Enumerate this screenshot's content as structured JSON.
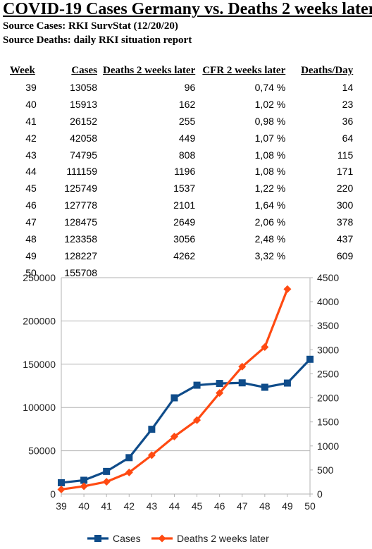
{
  "title": "COVID-19 Cases Germany vs. Deaths 2 weeks later",
  "source_cases": "Source Cases: RKI SurvStat (12/20/20)",
  "source_deaths": "Source Deaths: daily RKI situation report",
  "table": {
    "headers": [
      "Week",
      "Cases",
      "Deaths 2 weeks later",
      "CFR 2 weeks later",
      "Deaths/Day"
    ],
    "rows": [
      [
        "39",
        "13058",
        "96",
        "0,74 %",
        "14"
      ],
      [
        "40",
        "15913",
        "162",
        "1,02 %",
        "23"
      ],
      [
        "41",
        "26152",
        "255",
        "0,98 %",
        "36"
      ],
      [
        "42",
        "42058",
        "449",
        "1,07 %",
        "64"
      ],
      [
        "43",
        "74795",
        "808",
        "1,08 %",
        "115"
      ],
      [
        "44",
        "111159",
        "1196",
        "1,08 %",
        "171"
      ],
      [
        "45",
        "125749",
        "1537",
        "1,22 %",
        "220"
      ],
      [
        "46",
        "127778",
        "2101",
        "1,64 %",
        "300"
      ],
      [
        "47",
        "128475",
        "2649",
        "2,06 %",
        "378"
      ],
      [
        "48",
        "123358",
        "3056",
        "2,48 %",
        "437"
      ],
      [
        "49",
        "128227",
        "4262",
        "3,32 %",
        "609"
      ],
      [
        "50",
        "155708",
        "",
        "",
        ""
      ]
    ]
  },
  "chart_data": {
    "type": "line",
    "x": [
      39,
      40,
      41,
      42,
      43,
      44,
      45,
      46,
      47,
      48,
      49,
      50
    ],
    "series": [
      {
        "name": "Cases",
        "axis": "left",
        "color": "#0f4c8a",
        "marker": "square",
        "values": [
          13058,
          15913,
          26152,
          42058,
          74795,
          111159,
          125749,
          127778,
          128475,
          123358,
          128227,
          155708
        ]
      },
      {
        "name": "Deaths 2 weeks later",
        "axis": "right",
        "color": "#ff4a12",
        "marker": "diamond",
        "values": [
          96,
          162,
          255,
          449,
          808,
          1196,
          1537,
          2101,
          2649,
          3056,
          4262,
          null
        ]
      }
    ],
    "y_left": {
      "min": 0,
      "max": 250000,
      "ticks": [
        0,
        50000,
        100000,
        150000,
        200000,
        250000
      ]
    },
    "y_right": {
      "min": 0,
      "max": 4500,
      "ticks": [
        0,
        500,
        1000,
        1500,
        2000,
        2500,
        3000,
        3500,
        4000,
        4500
      ]
    },
    "grid": true,
    "legend_position": "bottom"
  }
}
